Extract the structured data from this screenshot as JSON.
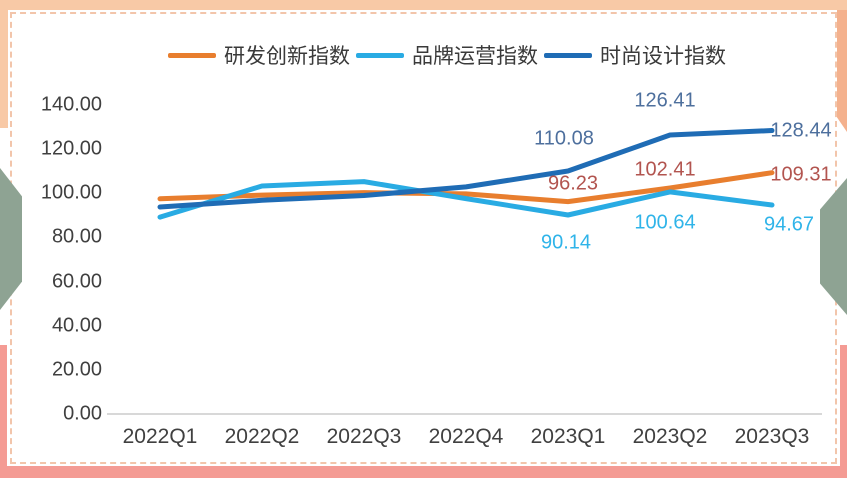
{
  "chart_data": {
    "type": "line",
    "categories": [
      "2022Q1",
      "2022Q2",
      "2022Q3",
      "2022Q4",
      "2023Q1",
      "2023Q2",
      "2023Q3"
    ],
    "series": [
      {
        "name": "研发创新指数",
        "color": "#E87E2E",
        "label_color": "#B2544F",
        "values": [
          97.5,
          99.2,
          100.3,
          99.7,
          96.23,
          102.41,
          109.31
        ],
        "labels": [
          null,
          null,
          null,
          null,
          "96.23",
          "102.41",
          "109.31"
        ]
      },
      {
        "name": "品牌运营指数",
        "color": "#29ABE3",
        "label_color": "#2FB4E9",
        "values": [
          89.2,
          103.3,
          105.3,
          97.6,
          90.14,
          100.64,
          94.67
        ],
        "labels": [
          null,
          null,
          null,
          null,
          "90.14",
          "100.64",
          "94.67"
        ]
      },
      {
        "name": "时尚设计指数",
        "color": "#1F6CB5",
        "label_color": "#4D6F9D",
        "values": [
          93.8,
          96.8,
          99.0,
          102.9,
          110.08,
          126.41,
          128.44
        ],
        "labels": [
          null,
          null,
          null,
          null,
          "110.08",
          "126.41",
          "128.44"
        ]
      }
    ],
    "y_ticks": [
      "140.00",
      "120.00",
      "100.00",
      "80.00",
      "60.00",
      "40.00",
      "20.00",
      "0.00"
    ],
    "ylim": [
      0,
      140
    ],
    "grid": false,
    "legend_position": "top",
    "note": "values for 2022Q1-2022Q4 estimated from line positions; 2023 values from data labels"
  },
  "frame_colors": {
    "top_bar": "#F8C9A6",
    "bottom_bar": "#F49B94",
    "left_top_strip": "#F8C9A6",
    "right_top_strip": "#F4B18D",
    "left_bottom_strip": "#F49B94",
    "right_bottom_strip": "#F49B94",
    "dashed_border": "#F2C5AB",
    "chevron": "#8EA393"
  }
}
